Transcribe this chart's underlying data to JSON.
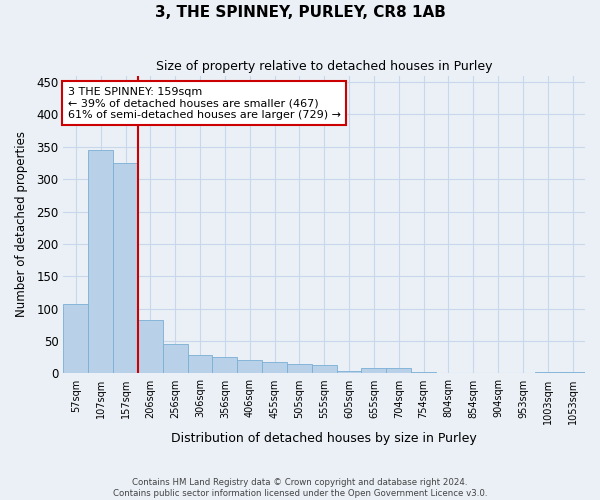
{
  "title": "3, THE SPINNEY, PURLEY, CR8 1AB",
  "subtitle": "Size of property relative to detached houses in Purley",
  "xlabel": "Distribution of detached houses by size in Purley",
  "ylabel": "Number of detached properties",
  "footer_line1": "Contains HM Land Registry data © Crown copyright and database right 2024.",
  "footer_line2": "Contains public sector information licensed under the Open Government Licence v3.0.",
  "bar_color": "#b8d0e8",
  "bar_edge_color": "#7aafd4",
  "grid_color": "#c8d8ea",
  "annotation_line1": "3 THE SPINNEY: 159sqm",
  "annotation_line2": "← 39% of detached houses are smaller (467)",
  "annotation_line3": "61% of semi-detached houses are larger (729) →",
  "annotation_box_color": "#ffffff",
  "annotation_box_edge": "#cc0000",
  "vline_color": "#cc0000",
  "bin_labels": [
    "57sqm",
    "107sqm",
    "157sqm",
    "206sqm",
    "256sqm",
    "306sqm",
    "356sqm",
    "406sqm",
    "455sqm",
    "505sqm",
    "555sqm",
    "605sqm",
    "655sqm",
    "704sqm",
    "754sqm",
    "804sqm",
    "854sqm",
    "904sqm",
    "953sqm",
    "1003sqm",
    "1053sqm"
  ],
  "bar_heights": [
    107,
    345,
    325,
    83,
    45,
    28,
    25,
    20,
    17,
    15,
    13,
    3,
    8,
    8,
    2,
    0,
    0,
    0,
    0,
    2,
    2
  ],
  "ylim": [
    0,
    460
  ],
  "yticks": [
    0,
    50,
    100,
    150,
    200,
    250,
    300,
    350,
    400,
    450
  ],
  "background_color": "#eaf0f6",
  "vline_bar_index": 2
}
